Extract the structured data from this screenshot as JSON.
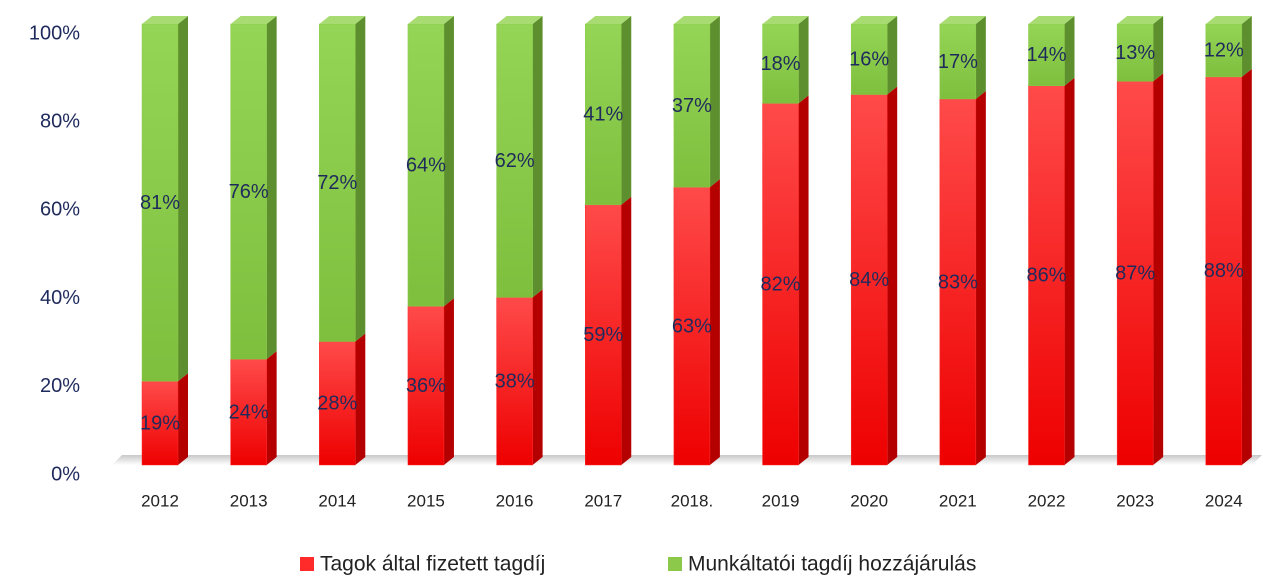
{
  "chart_data": {
    "type": "stacked_bar",
    "categories": [
      "2012",
      "2013",
      "2014",
      "2015",
      "2016",
      "2017",
      "2018.",
      "2019",
      "2020",
      "2021",
      "2022",
      "2023",
      "2024"
    ],
    "series": [
      {
        "name": "Tagok által fizetett tagdíj",
        "color": "#ff2a2a",
        "values": [
          19,
          24,
          28,
          36,
          38,
          59,
          63,
          82,
          84,
          83,
          86,
          87,
          88
        ],
        "value_labels": [
          "19%",
          "24%",
          "28%",
          "36%",
          "38%",
          "59%",
          "63%",
          "82%",
          "84%",
          "83%",
          "86%",
          "87%",
          "88%"
        ]
      },
      {
        "name": "Munkáltatói tagdíj hozzájárulás",
        "color": "#8cc94a",
        "values": [
          81,
          76,
          72,
          64,
          62,
          41,
          37,
          18,
          16,
          17,
          14,
          13,
          12
        ],
        "value_labels": [
          "81%",
          "76%",
          "72%",
          "64%",
          "62%",
          "41%",
          "37%",
          "18%",
          "16%",
          "17%",
          "14%",
          "13%",
          "12%"
        ]
      }
    ],
    "ylim": [
      0,
      100
    ],
    "yticks": [
      {
        "value": 0,
        "label": "0%"
      },
      {
        "value": 20,
        "label": "20%"
      },
      {
        "value": 40,
        "label": "40%"
      },
      {
        "value": 60,
        "label": "60%"
      },
      {
        "value": 80,
        "label": "80%"
      },
      {
        "value": 100,
        "label": "100%"
      }
    ],
    "legend": "bottom"
  }
}
